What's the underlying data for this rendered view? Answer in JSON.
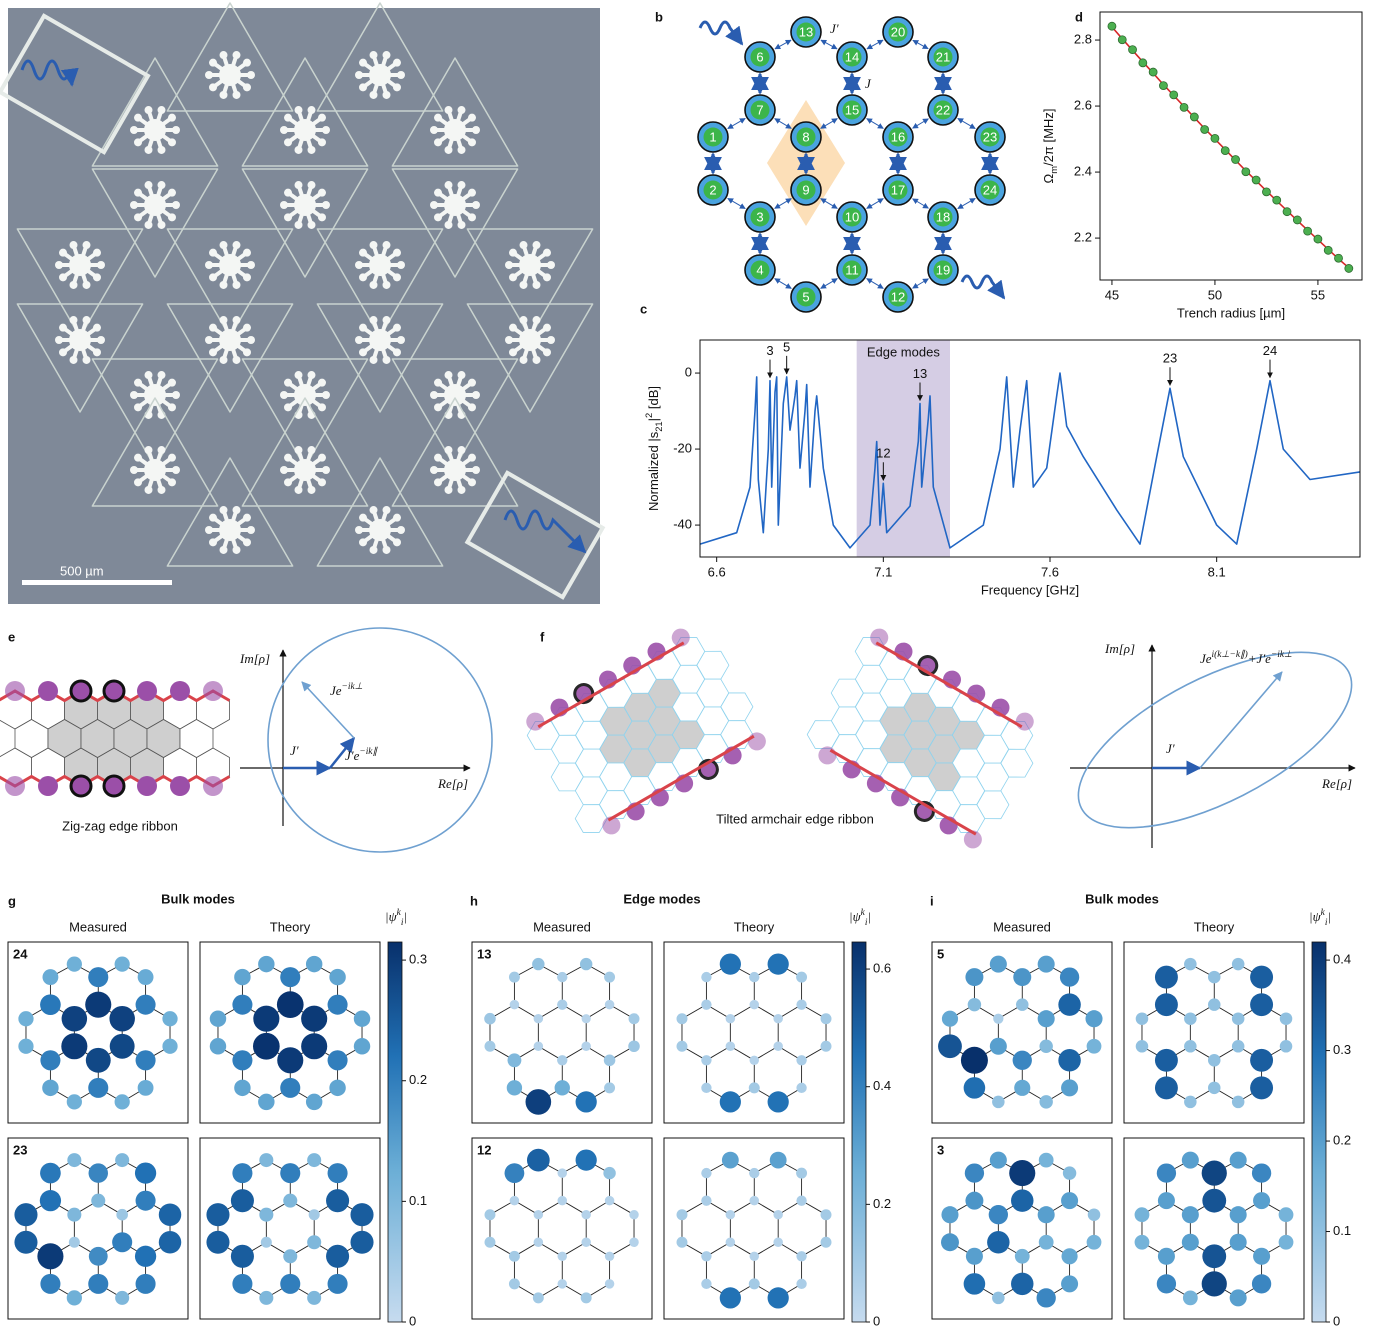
{
  "panel_labels": [
    "a",
    "b",
    "c",
    "d",
    "e",
    "f",
    "g",
    "h",
    "i"
  ],
  "micrograph": {
    "scale_bar": "500 µm"
  },
  "lattice_diagram": {
    "sites": [
      "1",
      "2",
      "3",
      "4",
      "5",
      "6",
      "7",
      "8",
      "9",
      "10",
      "11",
      "12",
      "13",
      "14",
      "15",
      "16",
      "17",
      "18",
      "19",
      "20",
      "21",
      "22",
      "23",
      "24"
    ],
    "J_prime": "J′",
    "J": "J"
  },
  "zigzag": {
    "caption": "Zig-zag edge ribbon",
    "y_axis": "Im[ρ]",
    "x_axis": "Re[ρ]",
    "vectors": [
      [
        "Je",
        "−ik⊥"
      ],
      [
        "J′"
      ],
      [
        "J′e",
        "−ik∥"
      ]
    ]
  },
  "armchair": {
    "caption": "Tilted armchair edge ribbon",
    "y_axis": "Im[ρ]",
    "x_axis": "Re[ρ]",
    "vectors": [
      [
        "J′"
      ],
      [
        "Je",
        "i(k⊥−k∥)",
        "+J′e",
        "−ik⊥"
      ]
    ]
  },
  "chart_data": [
    {
      "type": "line",
      "ylabel": [
        "Normalized |s",
        "21",
        "|",
        "2",
        " [dB]"
      ],
      "xlabel": "Frequency [GHz]",
      "xlim": [
        6.55,
        8.53
      ],
      "ylim": [
        -48.4,
        8.7
      ],
      "xticks": [
        6.6,
        7.1,
        7.6,
        8.1
      ],
      "yticks": [
        0,
        -20,
        -40
      ],
      "x": [
        6.55,
        6.66,
        6.7,
        6.715,
        6.72,
        6.725,
        6.74,
        6.755,
        6.76,
        6.765,
        6.775,
        6.78,
        6.785,
        6.8,
        6.81,
        6.82,
        6.835,
        6.84,
        6.85,
        6.865,
        6.87,
        6.88,
        6.895,
        6.9,
        6.92,
        6.95,
        7.0,
        7.06,
        7.075,
        7.08,
        7.09,
        7.1,
        7.11,
        7.18,
        7.205,
        7.21,
        7.215,
        7.235,
        7.24,
        7.25,
        7.3,
        7.4,
        7.45,
        7.47,
        7.49,
        7.51,
        7.53,
        7.55,
        7.59,
        7.62,
        7.63,
        7.65,
        7.7,
        7.8,
        7.87,
        7.92,
        7.96,
        8.0,
        8.1,
        8.16,
        8.22,
        8.26,
        8.3,
        8.38,
        8.53
      ],
      "series": [
        {
          "color": "#2166c4",
          "values": [
            -45,
            -42,
            -30,
            -10,
            -1,
            -28,
            -42,
            -20,
            -2,
            -30,
            -5,
            -1,
            -40,
            -8,
            -1,
            -15,
            -6,
            -2,
            -25,
            -10,
            -3,
            -30,
            -10,
            -6,
            -25,
            -40,
            -46,
            -40,
            -25,
            -18,
            -40,
            -29,
            -42,
            -35,
            -18,
            -8,
            -30,
            -12,
            -6,
            -30,
            -46,
            -40,
            -20,
            -1,
            -30,
            -15,
            -2,
            -30,
            -25,
            -6,
            0,
            -14,
            -22,
            -36,
            -45,
            -22,
            -4,
            -22,
            -40,
            -45,
            -20,
            -2,
            -20,
            -28,
            -26
          ]
        }
      ],
      "band": {
        "label": "Edge modes",
        "range": [
          7.02,
          7.3
        ],
        "color": "#d5cde4"
      },
      "annotations": [
        {
          "label": "3",
          "x": 6.76,
          "y": -2
        },
        {
          "label": "5",
          "x": 6.81,
          "y": -1
        },
        {
          "label": "12",
          "x": 7.1,
          "y": -29
        },
        {
          "label": "13",
          "x": 7.21,
          "y": -8
        },
        {
          "label": "23",
          "x": 7.96,
          "y": -4
        },
        {
          "label": "24",
          "x": 8.26,
          "y": -2
        }
      ]
    },
    {
      "type": "scatter",
      "ylabel": [
        "Ω",
        "m",
        "/2π [MHz]"
      ],
      "xlabel": "Trench radius [µm]",
      "xlim": [
        44.42,
        57.14
      ],
      "ylim": [
        2.073,
        2.885
      ],
      "xticks": [
        45,
        50,
        55
      ],
      "yticks": [
        2.2,
        2.4,
        2.6,
        2.8
      ],
      "x": [
        45,
        45.5,
        46,
        46.5,
        47,
        47.5,
        48,
        48.5,
        49,
        49.5,
        50,
        50.5,
        51,
        51.5,
        52,
        52.5,
        53,
        53.5,
        54,
        54.5,
        55,
        55.5,
        56,
        56.5
      ],
      "series": [
        {
          "kind": "line",
          "color": "#d62728",
          "values": [
            2.84,
            2.804,
            2.769,
            2.734,
            2.7,
            2.665,
            2.632,
            2.599,
            2.565,
            2.532,
            2.5,
            2.468,
            2.436,
            2.404,
            2.374,
            2.343,
            2.313,
            2.283,
            2.253,
            2.224,
            2.195,
            2.166,
            2.137,
            2.11
          ]
        },
        {
          "kind": "points",
          "color": "#4caf50",
          "values": [
            2.842,
            2.801,
            2.771,
            2.731,
            2.703,
            2.662,
            2.634,
            2.596,
            2.567,
            2.529,
            2.502,
            2.465,
            2.438,
            2.401,
            2.376,
            2.34,
            2.315,
            2.28,
            2.255,
            2.221,
            2.197,
            2.163,
            2.139,
            2.108
          ]
        }
      ]
    },
    {
      "type": "lattice",
      "title": "Bulk modes",
      "columns": [
        "Measured",
        "Theory"
      ],
      "colorbar_label": [
        "|ψ",
        "k",
        "i",
        "|"
      ],
      "clim": [
        0,
        0.315
      ],
      "cticks": [
        0.0,
        0.1,
        0.2,
        0.3
      ],
      "rows": [
        {
          "mode": "24",
          "measured": [
            0.12,
            0.12,
            0.2,
            0.14,
            0.12,
            0.13,
            0.21,
            0.29,
            0.3,
            0.28,
            0.2,
            0.12,
            0.12,
            0.2,
            0.3,
            0.29,
            0.28,
            0.2,
            0.13,
            0.12,
            0.13,
            0.2,
            0.12,
            0.12
          ],
          "theory": [
            0.14,
            0.14,
            0.2,
            0.14,
            0.14,
            0.14,
            0.2,
            0.3,
            0.31,
            0.3,
            0.2,
            0.14,
            0.14,
            0.2,
            0.31,
            0.3,
            0.3,
            0.2,
            0.14,
            0.14,
            0.14,
            0.2,
            0.14,
            0.14
          ]
        },
        {
          "mode": "23",
          "measured": [
            0.25,
            0.25,
            0.3,
            0.2,
            0.12,
            0.21,
            0.22,
            0.1,
            0.05,
            0.18,
            0.2,
            0.1,
            0.1,
            0.19,
            0.1,
            0.06,
            0.2,
            0.22,
            0.2,
            0.1,
            0.22,
            0.2,
            0.24,
            0.24
          ],
          "theory": [
            0.25,
            0.25,
            0.25,
            0.2,
            0.1,
            0.2,
            0.25,
            0.1,
            0.05,
            0.1,
            0.2,
            0.1,
            0.1,
            0.2,
            0.1,
            0.05,
            0.1,
            0.25,
            0.2,
            0.1,
            0.2,
            0.25,
            0.25,
            0.25
          ]
        }
      ]
    },
    {
      "type": "lattice",
      "title": "Edge modes",
      "columns": [
        "Measured",
        "Theory"
      ],
      "colorbar_label": [
        "|ψ",
        "k",
        "i",
        "|"
      ],
      "clim": [
        0,
        0.646
      ],
      "cticks": [
        0.0,
        0.2,
        0.4,
        0.6
      ],
      "rows": [
        {
          "mode": "13",
          "measured": [
            0.12,
            0.1,
            0.2,
            0.25,
            0.6,
            0.1,
            0.05,
            0.05,
            0.05,
            0.08,
            0.25,
            0.45,
            0.15,
            0.08,
            0.08,
            0.04,
            0.05,
            0.12,
            0.1,
            0.15,
            0.1,
            0.05,
            0.1,
            0.12
          ],
          "theory": [
            0.1,
            0.1,
            0.08,
            0.08,
            0.45,
            0.08,
            0.08,
            0.05,
            0.05,
            0.05,
            0.1,
            0.45,
            0.45,
            0.08,
            0.05,
            0.05,
            0.05,
            0.08,
            0.08,
            0.45,
            0.1,
            0.08,
            0.1,
            0.1
          ]
        },
        {
          "mode": "12",
          "measured": [
            0.1,
            0.1,
            0.1,
            0.1,
            0.1,
            0.4,
            0.05,
            0.05,
            0.05,
            0.05,
            0.05,
            0.1,
            0.5,
            0.05,
            0.05,
            0.05,
            0.05,
            0.05,
            0.05,
            0.45,
            0.15,
            0.05,
            0.05,
            0.05
          ],
          "theory": [
            0.1,
            0.1,
            0.08,
            0.08,
            0.45,
            0.08,
            0.08,
            0.05,
            0.05,
            0.05,
            0.1,
            0.45,
            0.3,
            0.08,
            0.05,
            0.05,
            0.05,
            0.08,
            0.08,
            0.3,
            0.1,
            0.08,
            0.1,
            0.1
          ]
        }
      ]
    },
    {
      "type": "lattice",
      "title": "Bulk modes",
      "columns": [
        "Measured",
        "Theory"
      ],
      "colorbar_label": [
        "|ψ",
        "k",
        "i",
        "|"
      ],
      "clim": [
        0,
        0.42
      ],
      "cticks": [
        0.0,
        0.1,
        0.2,
        0.3,
        0.4
      ],
      "rows": [
        {
          "mode": "5",
          "measured": [
            0.18,
            0.35,
            0.42,
            0.3,
            0.1,
            0.22,
            0.12,
            0.05,
            0.2,
            0.25,
            0.18,
            0.12,
            0.2,
            0.22,
            0.1,
            0.2,
            0.12,
            0.32,
            0.2,
            0.2,
            0.25,
            0.32,
            0.2,
            0.15
          ],
          "theory": [
            0.1,
            0.1,
            0.33,
            0.33,
            0.1,
            0.33,
            0.33,
            0.1,
            0.1,
            0.1,
            0.1,
            0.1,
            0.1,
            0.1,
            0.1,
            0.1,
            0.1,
            0.33,
            0.33,
            0.1,
            0.33,
            0.33,
            0.1,
            0.1
          ]
        },
        {
          "mode": "3",
          "measured": [
            0.2,
            0.22,
            0.2,
            0.3,
            0.1,
            0.25,
            0.22,
            0.25,
            0.32,
            0.15,
            0.32,
            0.25,
            0.2,
            0.4,
            0.32,
            0.2,
            0.15,
            0.18,
            0.2,
            0.15,
            0.12,
            0.2,
            0.1,
            0.15
          ],
          "theory": [
            0.15,
            0.15,
            0.2,
            0.25,
            0.15,
            0.25,
            0.2,
            0.2,
            0.2,
            0.35,
            0.38,
            0.2,
            0.2,
            0.38,
            0.35,
            0.2,
            0.2,
            0.2,
            0.25,
            0.2,
            0.25,
            0.2,
            0.15,
            0.15
          ]
        }
      ]
    }
  ]
}
